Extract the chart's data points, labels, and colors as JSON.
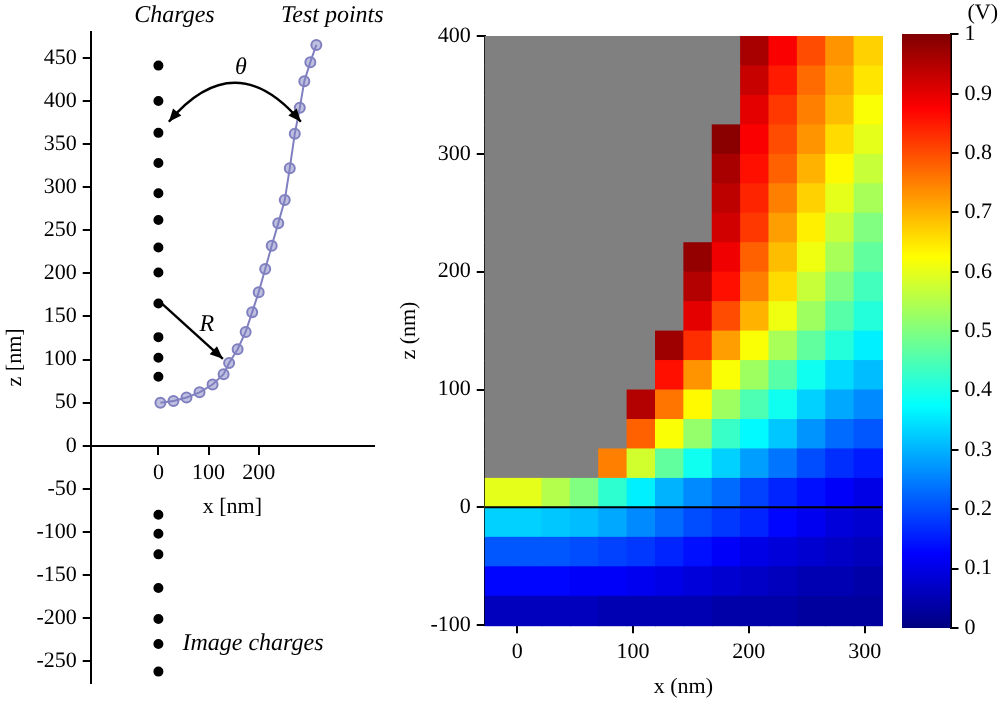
{
  "chart_data": [
    {
      "type": "scatter",
      "xlabel": "x [nm]",
      "ylabel": "z [nm]",
      "xlim": [
        -135,
        430
      ],
      "ylim": [
        -275,
        480
      ],
      "xticks": [
        0,
        100,
        200
      ],
      "yticks": [
        -250,
        -200,
        -150,
        -100,
        -50,
        0,
        50,
        100,
        150,
        200,
        250,
        300,
        350,
        400,
        450
      ],
      "marker": "circle",
      "annotations": [
        "θ",
        "R"
      ],
      "series": [
        {
          "name": "Charges",
          "color": "#000000",
          "x": [
            0,
            0,
            0,
            0,
            0,
            0,
            0,
            0,
            0,
            0,
            0,
            0
          ],
          "values": [
            441,
            400,
            363,
            328,
            293,
            262,
            230,
            201,
            165,
            126,
            102,
            80
          ]
        },
        {
          "name": "Test points",
          "type": "line",
          "color": "#8080c0",
          "x": [
            4,
            30,
            56,
            82,
            108,
            130,
            141,
            158,
            174,
            187,
            200,
            213,
            226,
            239,
            252,
            262,
            272,
            282,
            291,
            303,
            315
          ],
          "values": [
            50,
            52,
            56,
            62,
            71,
            83,
            96,
            112,
            132,
            155,
            178,
            205,
            232,
            258,
            285,
            322,
            362,
            392,
            423,
            445,
            465
          ]
        },
        {
          "name": "Image charges",
          "color": "#000000",
          "x": [
            0,
            0,
            0,
            0,
            0,
            0,
            0
          ],
          "values": [
            -80,
            -102,
            -126,
            -165,
            -201,
            -230,
            -262
          ]
        }
      ]
    },
    {
      "type": "heatmap",
      "xlabel": "x (nm)",
      "ylabel": "z (nm)",
      "clabel": "(V)",
      "xlim": [
        -28,
        315
      ],
      "ylim": [
        -100,
        400
      ],
      "xticks": [
        0,
        100,
        200,
        300
      ],
      "yticks": [
        -100,
        0,
        100,
        200,
        300,
        400
      ],
      "clim": [
        0,
        1
      ],
      "cticks": [
        0,
        0.1,
        0.2,
        0.3,
        0.4,
        0.5,
        0.6,
        0.7,
        0.8,
        0.9,
        1
      ],
      "ref_lines": [
        {
          "axis": "y",
          "value": 0,
          "color": "#000000"
        }
      ],
      "x": [
        -15.75,
        8.75,
        33.25,
        57.75,
        82.25,
        106.75,
        131.25,
        155.75,
        180.25,
        204.75,
        229.25,
        253.75,
        278.25,
        302.75
      ],
      "y": [
        387.5,
        362.5,
        337.5,
        312.5,
        287.5,
        262.5,
        237.5,
        212.5,
        187.5,
        162.5,
        137.5,
        112.5,
        87.5,
        62.5,
        37.5,
        12.5,
        -12.5,
        -37.5,
        -62.5,
        -87.5
      ],
      "cells": [
        [
          null,
          null,
          null,
          null,
          null,
          null,
          null,
          null,
          null,
          0.96,
          0.88,
          0.8,
          0.73,
          0.67
        ],
        [
          null,
          null,
          null,
          null,
          null,
          null,
          null,
          null,
          null,
          0.93,
          0.85,
          0.77,
          0.71,
          0.65
        ],
        [
          null,
          null,
          null,
          null,
          null,
          null,
          null,
          null,
          null,
          0.9,
          0.82,
          0.75,
          0.69,
          0.62
        ],
        [
          null,
          null,
          null,
          null,
          null,
          null,
          null,
          null,
          0.99,
          0.88,
          0.8,
          0.73,
          0.66,
          0.6
        ],
        [
          null,
          null,
          null,
          null,
          null,
          null,
          null,
          null,
          0.96,
          0.86,
          0.78,
          0.7,
          0.63,
          0.57
        ],
        [
          null,
          null,
          null,
          null,
          null,
          null,
          null,
          null,
          0.94,
          0.84,
          0.75,
          0.67,
          0.6,
          0.54
        ],
        [
          null,
          null,
          null,
          null,
          null,
          null,
          null,
          null,
          0.92,
          0.82,
          0.72,
          0.64,
          0.57,
          0.5
        ],
        [
          null,
          null,
          null,
          null,
          null,
          null,
          null,
          0.98,
          0.89,
          0.78,
          0.69,
          0.61,
          0.54,
          0.47
        ],
        [
          null,
          null,
          null,
          null,
          null,
          null,
          null,
          0.95,
          0.86,
          0.75,
          0.66,
          0.57,
          0.5,
          0.44
        ],
        [
          null,
          null,
          null,
          null,
          null,
          null,
          null,
          0.9,
          0.8,
          0.7,
          0.61,
          0.53,
          0.46,
          0.41
        ],
        [
          null,
          null,
          null,
          null,
          null,
          null,
          0.97,
          0.83,
          0.72,
          0.62,
          0.54,
          0.47,
          0.41,
          0.36
        ],
        [
          null,
          null,
          null,
          null,
          null,
          null,
          0.86,
          0.73,
          0.62,
          0.53,
          0.46,
          0.39,
          0.34,
          0.31
        ],
        [
          null,
          null,
          null,
          null,
          null,
          0.95,
          0.76,
          0.63,
          0.53,
          0.45,
          0.39,
          0.33,
          0.29,
          0.26
        ],
        [
          null,
          null,
          null,
          null,
          null,
          0.78,
          0.62,
          0.52,
          0.43,
          0.37,
          0.32,
          0.27,
          0.23,
          0.21
        ],
        [
          null,
          null,
          null,
          null,
          0.75,
          0.58,
          0.47,
          0.39,
          0.33,
          0.28,
          0.24,
          0.2,
          0.17,
          0.15
        ],
        [
          0.6,
          0.6,
          0.55,
          0.5,
          0.42,
          0.36,
          0.3,
          0.26,
          0.23,
          0.19,
          0.16,
          0.14,
          0.12,
          0.1
        ],
        [
          0.33,
          0.33,
          0.32,
          0.31,
          0.29,
          0.26,
          0.23,
          0.2,
          0.18,
          0.16,
          0.13,
          0.11,
          0.09,
          0.08
        ],
        [
          0.21,
          0.21,
          0.21,
          0.2,
          0.19,
          0.18,
          0.16,
          0.14,
          0.12,
          0.1,
          0.09,
          0.08,
          0.07,
          0.06
        ],
        [
          0.13,
          0.13,
          0.13,
          0.12,
          0.12,
          0.11,
          0.1,
          0.09,
          0.08,
          0.07,
          0.06,
          0.05,
          0.05,
          0.04
        ],
        [
          0.06,
          0.06,
          0.06,
          0.06,
          0.05,
          0.05,
          0.05,
          0.05,
          0.04,
          0.04,
          0.04,
          0.03,
          0.03,
          0.03
        ]
      ]
    }
  ]
}
